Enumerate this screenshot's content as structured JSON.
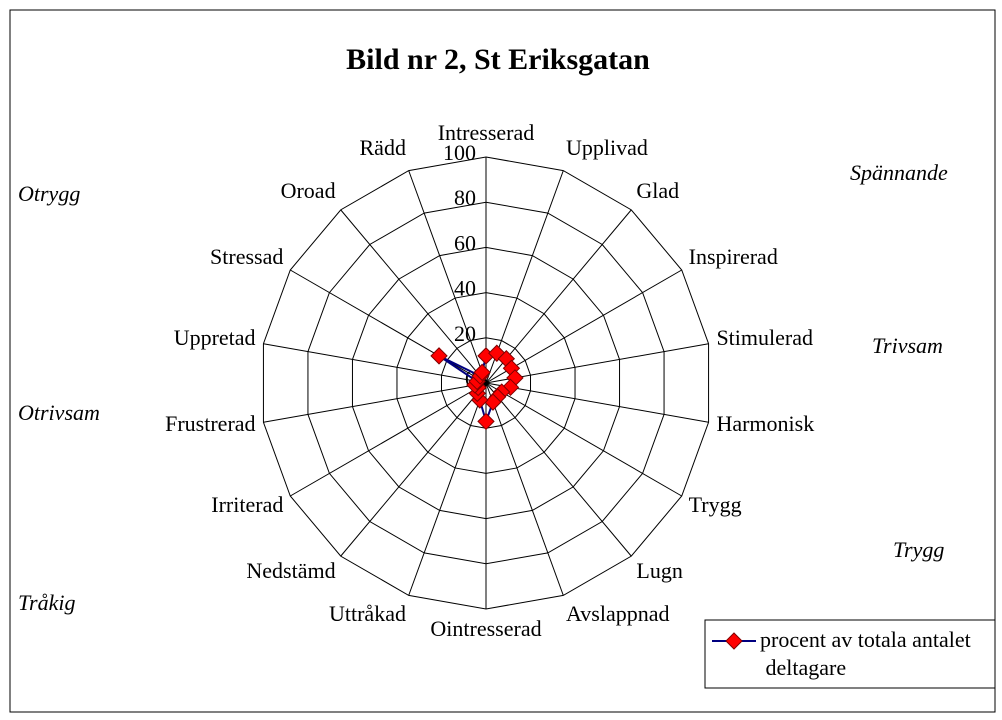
{
  "chart_data": {
    "type": "radar",
    "title": "Bild nr 2, St Eriksgatan",
    "categories": [
      "Intresserad",
      "Upplivad",
      "Glad",
      "Inspirerad",
      "Stimulerad",
      "Harmonisk",
      "Trygg",
      "Lugn",
      "Avslappnad",
      "Ointresserad",
      "Uttråkad",
      "Nedstämd",
      "Irriterad",
      "Frustrerad",
      "Uppretad",
      "Stressad",
      "Oroad",
      "Rädd"
    ],
    "series": [
      {
        "name": "procent av totala antalet deltagare",
        "color": "#000080",
        "marker_color": "#ff0000",
        "values": [
          12,
          14,
          14,
          13,
          13,
          11,
          8,
          8,
          9,
          17,
          8,
          6,
          4,
          5,
          4,
          24,
          4,
          5
        ]
      }
    ],
    "ylim": [
      0,
      100
    ],
    "yticks": [
      0,
      20,
      40,
      60,
      80,
      100
    ],
    "grid": true,
    "legend": "lower right",
    "annotations": [
      "Otrygg",
      "Spännande",
      "Trivsam",
      "Otrivsam",
      "Trygg",
      "Tråkig"
    ]
  }
}
